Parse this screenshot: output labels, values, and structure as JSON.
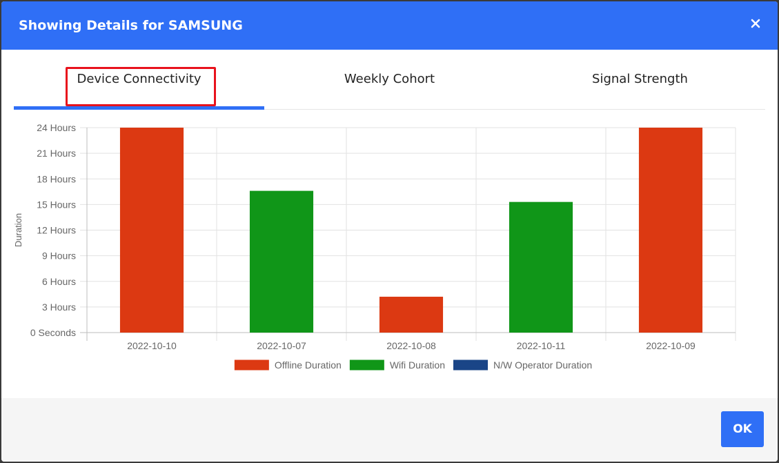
{
  "dialog": {
    "title": "Showing Details for SAMSUNG",
    "close_icon": "close-icon",
    "ok_label": "OK"
  },
  "tabs": [
    {
      "label": "Device Connectivity",
      "active": true
    },
    {
      "label": "Weekly Cohort",
      "active": false
    },
    {
      "label": "Signal Strength",
      "active": false
    }
  ],
  "colors": {
    "header": "#2f6ff6",
    "offline": "#dc3912",
    "wifi": "#109618",
    "operator": "#1a4587",
    "highlight": "#e8121c"
  },
  "chart_data": {
    "type": "bar",
    "title": "",
    "xlabel": "",
    "ylabel": "Duration",
    "ylim": [
      0,
      24
    ],
    "yticks": [
      {
        "value": 0,
        "label": "0 Seconds"
      },
      {
        "value": 3,
        "label": "3 Hours"
      },
      {
        "value": 6,
        "label": "6 Hours"
      },
      {
        "value": 9,
        "label": "9 Hours"
      },
      {
        "value": 12,
        "label": "12 Hours"
      },
      {
        "value": 15,
        "label": "15 Hours"
      },
      {
        "value": 18,
        "label": "18 Hours"
      },
      {
        "value": 21,
        "label": "21 Hours"
      },
      {
        "value": 24,
        "label": "24 Hours"
      }
    ],
    "grid": true,
    "stacked": true,
    "legend_position": "bottom",
    "categories": [
      "2022-10-10",
      "2022-10-07",
      "2022-10-08",
      "2022-10-11",
      "2022-10-09"
    ],
    "series": [
      {
        "name": "Offline Duration",
        "color": "#dc3912",
        "values": [
          24,
          0,
          4.2,
          0,
          24
        ]
      },
      {
        "name": "Wifi Duration",
        "color": "#109618",
        "values": [
          0,
          16.6,
          0,
          15.3,
          0
        ]
      },
      {
        "name": "N/W Operator Duration",
        "color": "#1a4587",
        "values": [
          0,
          0,
          0,
          0,
          0
        ]
      }
    ]
  }
}
